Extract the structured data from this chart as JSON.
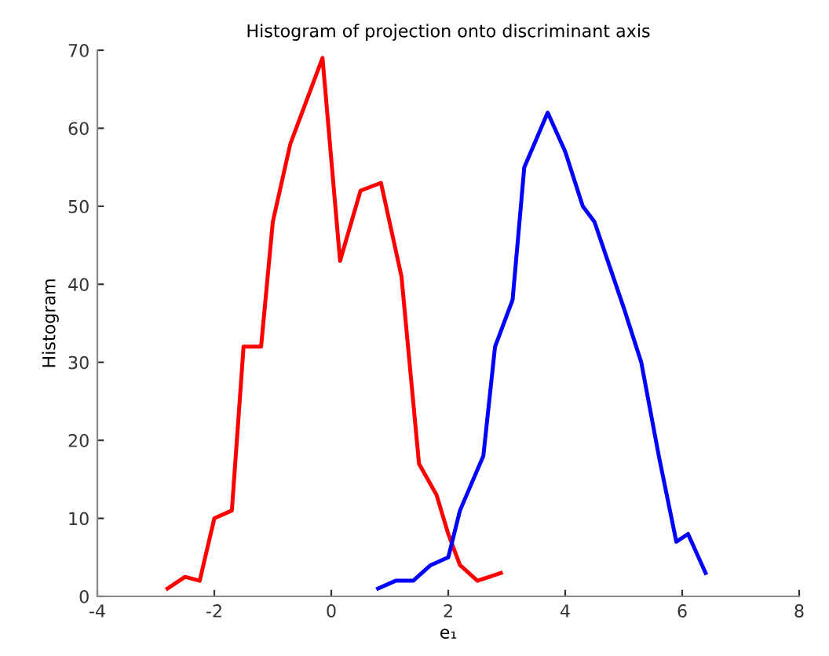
{
  "chart_data": {
    "type": "line",
    "title": "Histogram of projection onto discriminant axis",
    "xlabel": "e₁",
    "ylabel": "Histogram",
    "xlim": [
      -4,
      8
    ],
    "xticks": [
      -4,
      -2,
      0,
      2,
      4,
      6,
      8
    ],
    "ylim": [
      0,
      70
    ],
    "yticks": [
      0,
      10,
      20,
      30,
      40,
      50,
      60,
      70
    ],
    "grid": false,
    "marker": "none",
    "line_style": "solid",
    "series": [
      {
        "color": "#ff0000",
        "x": [
          -2.8,
          -2.5,
          -2.25,
          -2.0,
          -1.7,
          -1.5,
          -1.2,
          -1.0,
          -0.7,
          -0.15,
          0.15,
          0.5,
          0.85,
          1.2,
          1.5,
          1.8,
          2.0,
          2.2,
          2.5,
          2.9
        ],
        "values": [
          1,
          2.5,
          2,
          10,
          11,
          32,
          32,
          48,
          58,
          69,
          43,
          52,
          53,
          41,
          17,
          13,
          8,
          4,
          2,
          3
        ]
      },
      {
        "color": "#0000ff",
        "x": [
          0.8,
          1.1,
          1.4,
          1.7,
          2.0,
          2.2,
          2.6,
          2.8,
          3.1,
          3.3,
          3.7,
          4.0,
          4.3,
          4.5,
          5.0,
          5.3,
          5.6,
          5.9,
          6.1,
          6.4
        ],
        "values": [
          1,
          2,
          2,
          4,
          5,
          11,
          18,
          32,
          38,
          55,
          62,
          57,
          50,
          48,
          37,
          30,
          18,
          7,
          8,
          3
        ]
      }
    ]
  }
}
